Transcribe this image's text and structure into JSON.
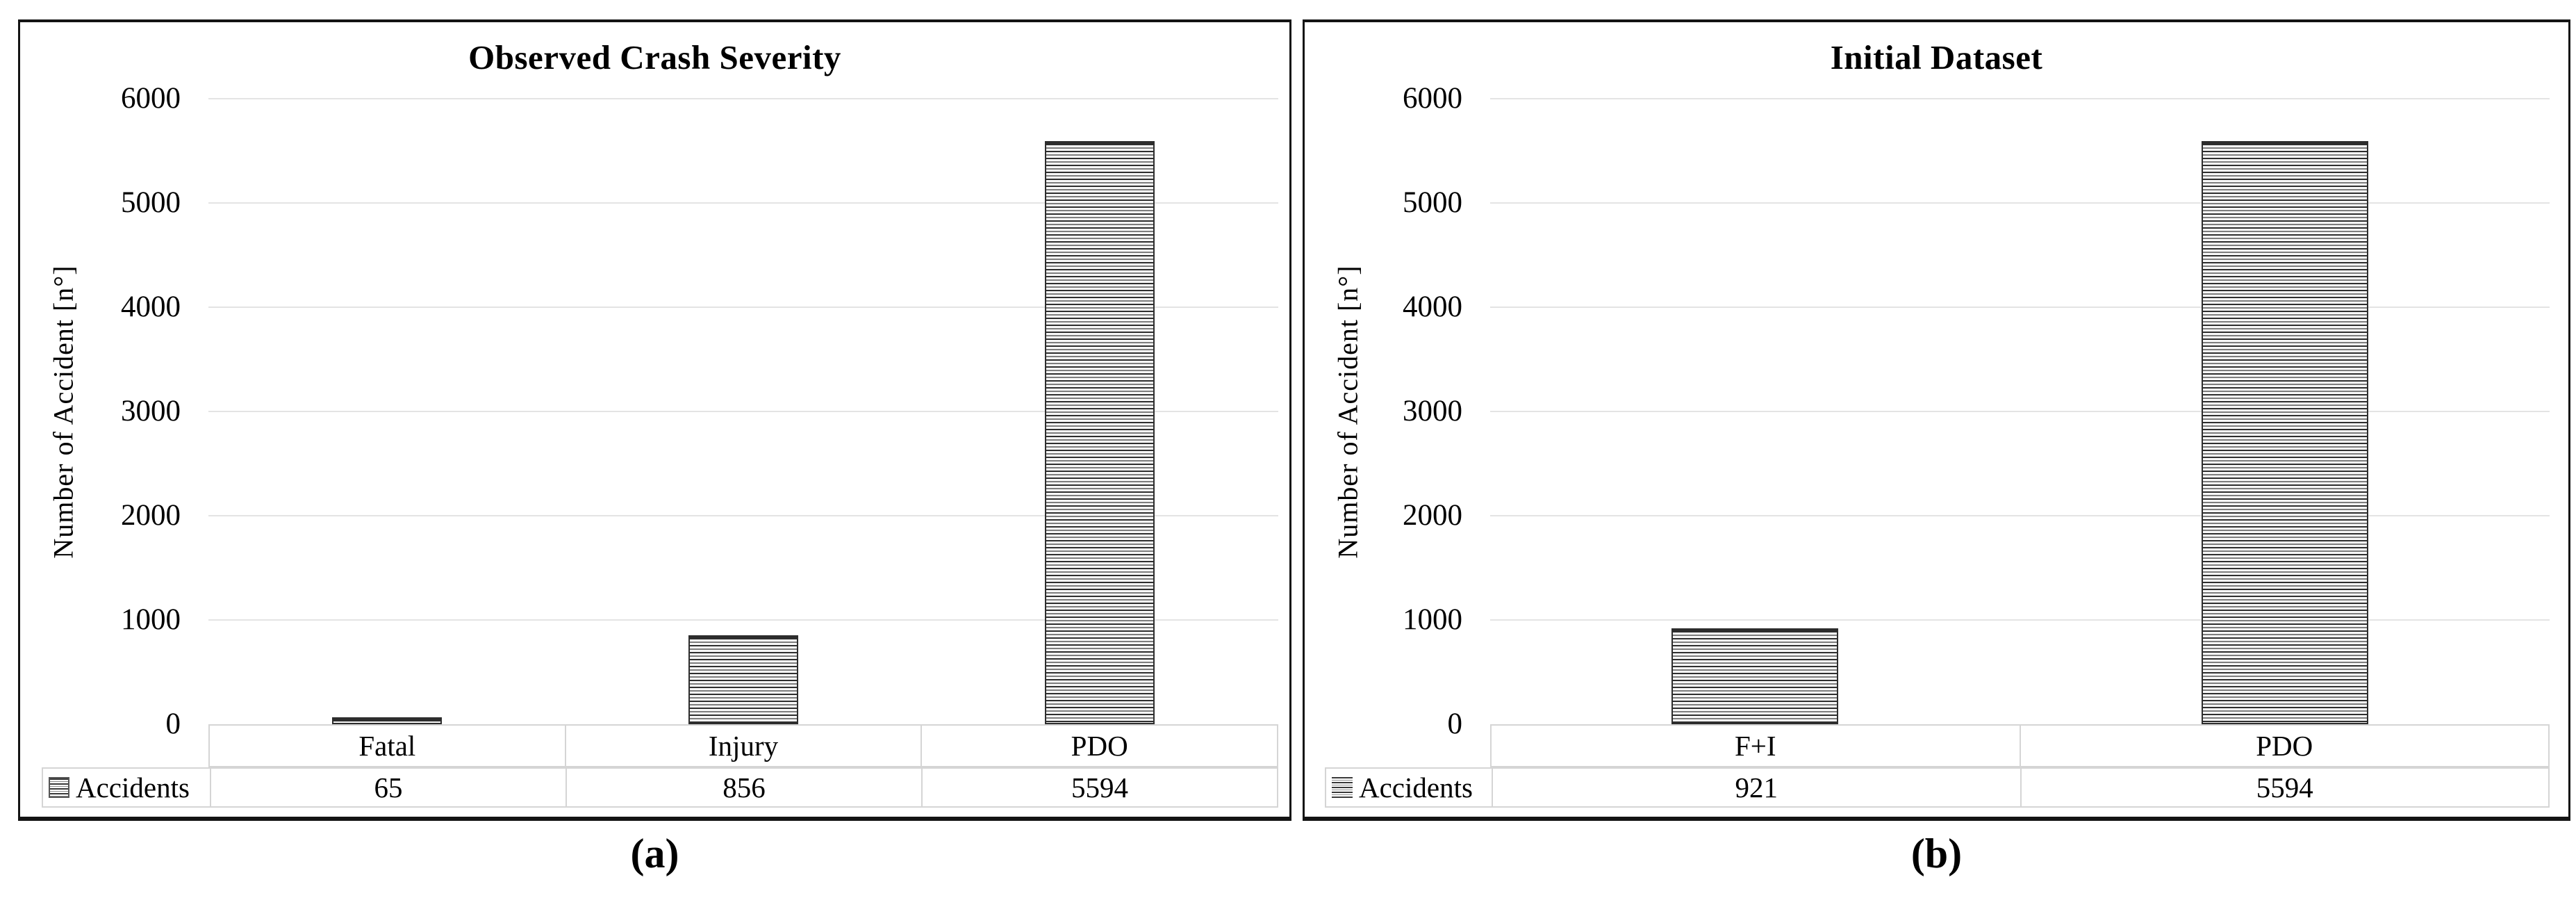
{
  "figure": {
    "captions": [
      "(a)",
      "(b)"
    ]
  },
  "colors": {
    "background": "#ffffff",
    "text": "#000000",
    "panel_border": "#141414",
    "grid_line": "#e4e4e4",
    "table_border": "#d5d5d5",
    "bar_border": "#2d2d2d",
    "hatch_dark": "#2e2e2e",
    "hatch_mid": "#7d7d7d",
    "hatch_light": "#f8f8f8"
  },
  "chart_data": [
    {
      "id": "a",
      "type": "bar",
      "title": "Observed Crash Severity",
      "xlabel": "",
      "ylabel": "Number of Accident [n°]",
      "categories": [
        "Fatal",
        "Injury",
        "PDO"
      ],
      "values": [
        65,
        856,
        5594
      ],
      "series": [
        {
          "name": "Accidents",
          "values": [
            65,
            856,
            5594
          ]
        }
      ],
      "yticks": [
        0,
        1000,
        2000,
        3000,
        4000,
        5000,
        6000
      ],
      "ylim": [
        0,
        6000
      ],
      "grid": true,
      "bar_fill": "horizontal-stripe-hatch",
      "legend_position": "bottom-data-table",
      "legend_label": "Accidents",
      "legend_swatch": "bordered-stripes",
      "table_row": {
        "label": "Accidents",
        "values": [
          "65",
          "856",
          "5594"
        ]
      },
      "caption": "(a)"
    },
    {
      "id": "b",
      "type": "bar",
      "title": "Initial Dataset",
      "xlabel": "",
      "ylabel": "Number of Accident [n°]",
      "categories": [
        "F+I",
        "PDO"
      ],
      "values": [
        921,
        5594
      ],
      "series": [
        {
          "name": "Accidents",
          "values": [
            921,
            5594
          ]
        }
      ],
      "yticks": [
        0,
        1000,
        2000,
        3000,
        4000,
        5000,
        6000
      ],
      "ylim": [
        0,
        6000
      ],
      "grid": true,
      "bar_fill": "horizontal-stripe-hatch",
      "legend_position": "bottom-data-table",
      "legend_label": "Accidents",
      "legend_swatch": "stripes",
      "table_row": {
        "label": "Accidents",
        "values": [
          "921",
          "5594"
        ]
      },
      "caption": "(b)"
    }
  ]
}
